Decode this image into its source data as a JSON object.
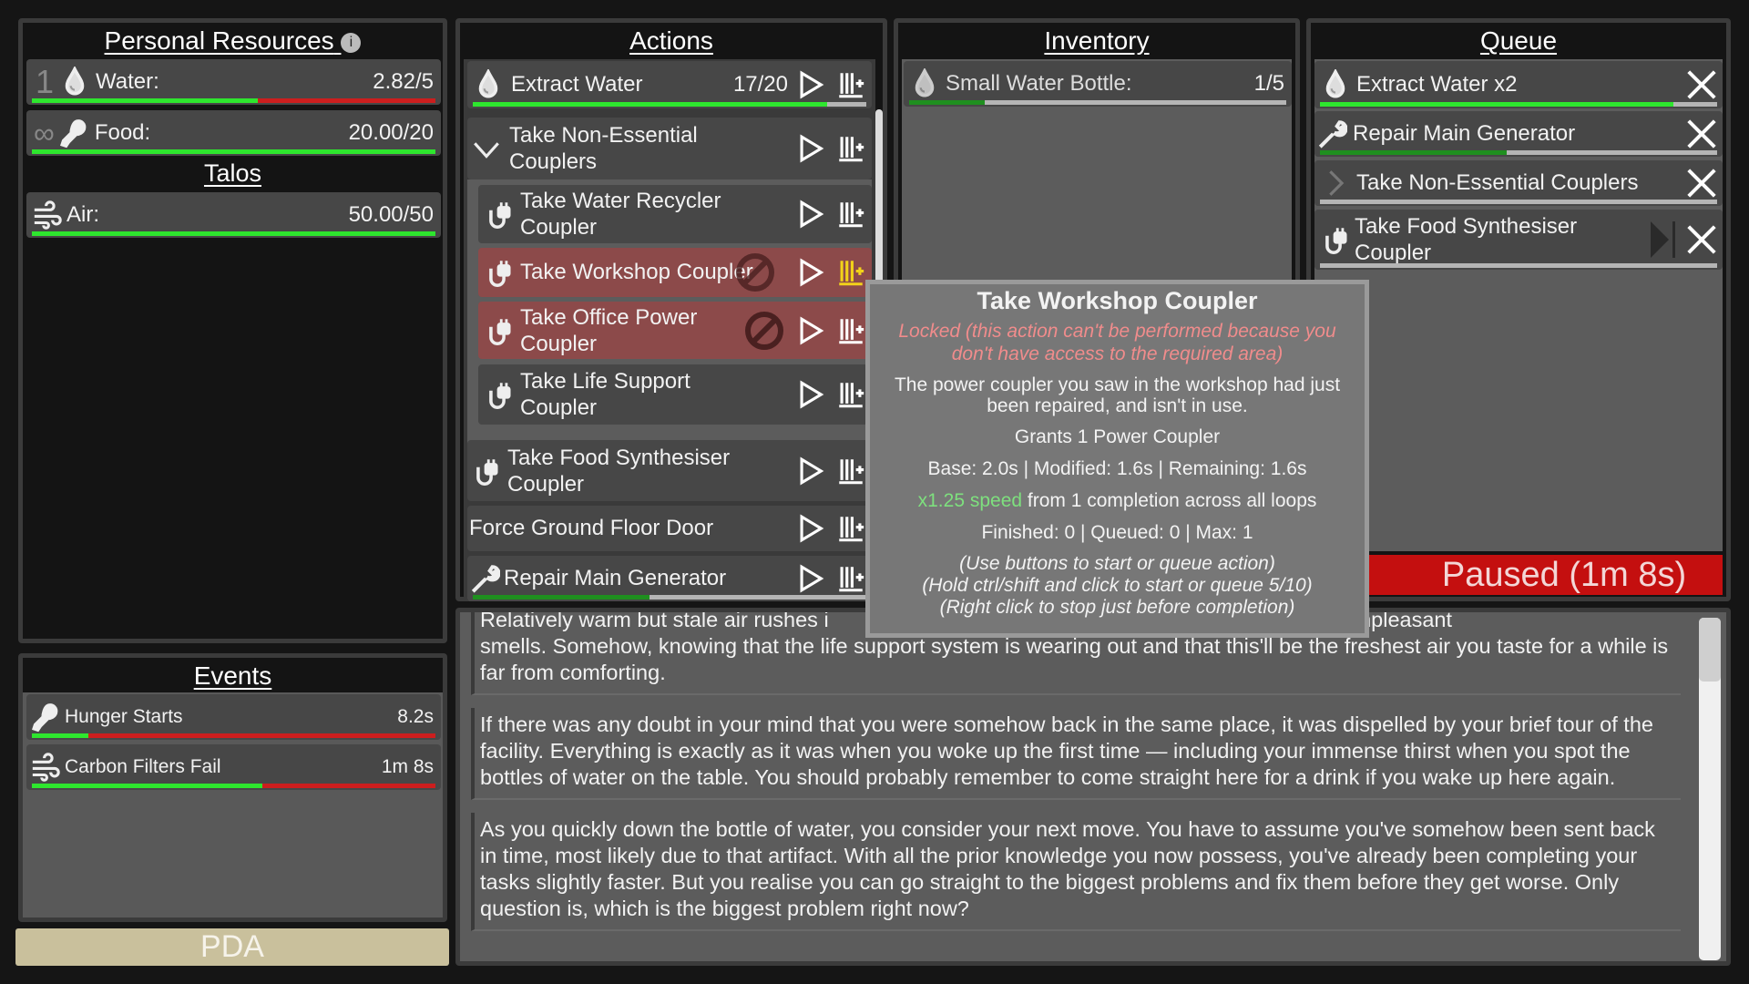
{
  "personal": {
    "title": "Personal Resources",
    "info_icon": "info-icon",
    "water": {
      "prefix": "1",
      "label": "Water:",
      "value": "2.82/5",
      "fill": 0.56
    },
    "food": {
      "prefix": "∞",
      "label": "Food:",
      "value": "20.00/20",
      "fill": 1.0
    },
    "talos_title": "Talos",
    "air": {
      "label": "Air:",
      "value": "50.00/50",
      "fill": 1.0
    }
  },
  "events": {
    "title": "Events",
    "items": [
      {
        "icon": "drumstick-icon",
        "label": "Hunger Starts",
        "value": "8.2s",
        "fill": 0.14
      },
      {
        "icon": "wind-icon",
        "label": "Carbon Filters Fail",
        "value": "1m 8s",
        "fill": 0.57
      }
    ]
  },
  "pda": {
    "label": "PDA"
  },
  "actions": {
    "title": "Actions",
    "items": [
      {
        "label": "Extract Water",
        "count": "17/20",
        "fill": 0.9
      },
      {
        "label": "Take Non-Essential Couplers"
      },
      {
        "label": "Take Water Recycler Coupler"
      },
      {
        "label": "Take Workshop Coupler",
        "locked": true
      },
      {
        "label": "Take Office Power Coupler",
        "locked": true
      },
      {
        "label": "Take Life Support Coupler"
      },
      {
        "label": "Take Food Synthesiser Coupler"
      },
      {
        "label": "Force Ground Floor Door"
      },
      {
        "label": "Repair Main Generator",
        "fill": 0.45
      }
    ]
  },
  "inventory": {
    "title": "Inventory",
    "items": [
      {
        "label": "Small Water Bottle:",
        "value": "1/5",
        "fill": 0.2
      }
    ]
  },
  "queue": {
    "title": "Queue",
    "items": [
      {
        "label": "Extract Water x2",
        "fill": 0.89
      },
      {
        "label": "Repair Main Generator",
        "fill": 0.47
      },
      {
        "label": "Take Non-Essential Couplers",
        "fill": 0
      },
      {
        "label": "Take Food Synthesiser Coupler",
        "fill": 0
      }
    ],
    "status": "Paused (1m 8s)"
  },
  "tooltip": {
    "title": "Take Workshop Coupler",
    "locked": "Locked (this action can't be performed because you don't have access to the required area)",
    "description": "The power coupler you saw in the workshop had just been repaired, and isn't in use.",
    "grants": "Grants 1 Power Coupler",
    "times": "Base: 2.0s | Modified: 1.6s | Remaining: 1.6s",
    "speed": "x1.25 speed",
    "speed_rest": " from 1 completion across all loops",
    "counts": "Finished: 0 | Queued: 0 | Max: 1",
    "hint1": "(Use buttons to start or queue action)",
    "hint2": "(Hold ctrl/shift and click to start or queue 5/10)",
    "hint3": "(Right click to stop just before completion)"
  },
  "story": {
    "p1_a": "Relatively warm but stale air rushes i",
    "p1_b": "n it a variety of unpleasant",
    "p1_rest": "smells. Somehow, knowing that the life support system is wearing out and that this'll be the freshest air you taste for a while is far from comforting.",
    "p2": "If there was any doubt in your mind that you were somehow back in the same place, it was dispelled by your brief tour of the facility. Everything is exactly as it was when you woke up the first time — including your immense thirst when you spot the bottles of water on the table. You should probably remember to come straight here for a drink if you wake up here again.",
    "p3": "As you quickly down the bottle of water, you consider your next move. You have to assume you've somehow been sent back in time, most likely due to that artifact. With all the prior knowledge you now possess, you've already been completing your tasks slightly faster. But you realise you can go straight to the biggest problems and fix them before they get worse. Only question is, which is the biggest problem right now?"
  },
  "colors": {
    "progress": "#2ee62e",
    "deficit": "#cc1e1e",
    "locked_row": "#8c4a4a",
    "paused": "#c40f0f",
    "pda": "#c9c09c",
    "speed": "#7ee07e",
    "locked_text": "#f08c8c"
  }
}
